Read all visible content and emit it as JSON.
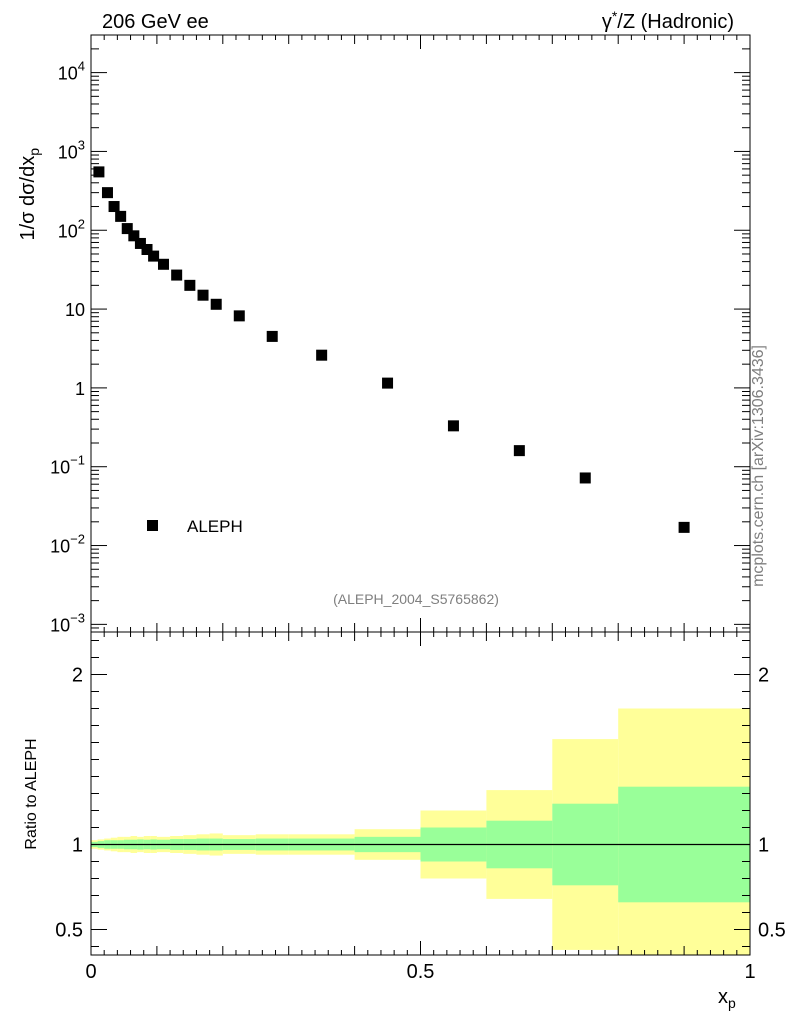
{
  "header": {
    "left_title": "206 GeV ee",
    "right_title_base": "γ",
    "right_title_sup": "*",
    "right_title_rest": "/Z (Hadronic)"
  },
  "watermark": "mcplots.cern.ch [arXiv:1306.3436]",
  "analysis_id": "(ALEPH_2004_S5765862)",
  "chart_data": [
    {
      "type": "scatter",
      "panel": "main",
      "ylabel": "1/σ dσ/dx_p",
      "ylabel_parts": {
        "main": "1/σ dσ/dx",
        "sub": "p"
      },
      "yscale": "log",
      "ylim": [
        0.0008,
        30000
      ],
      "xlim": [
        0,
        1
      ],
      "y_ticks": [
        {
          "value": 10000,
          "base": "10",
          "exp": "4"
        },
        {
          "value": 1000,
          "base": "10",
          "exp": "3"
        },
        {
          "value": 100,
          "base": "10",
          "exp": "2"
        },
        {
          "value": 10,
          "base": "10",
          "exp": ""
        },
        {
          "value": 1,
          "base": "1",
          "exp": ""
        },
        {
          "value": 0.1,
          "base": "10",
          "exp": "−1"
        },
        {
          "value": 0.01,
          "base": "10",
          "exp": "−2"
        },
        {
          "value": 0.001,
          "base": "10",
          "exp": "−3"
        }
      ],
      "legend": {
        "label": "ALEPH",
        "placement": "lower-left"
      },
      "series": [
        {
          "name": "ALEPH",
          "marker": "square",
          "x": [
            0.012,
            0.025,
            0.035,
            0.045,
            0.055,
            0.065,
            0.075,
            0.085,
            0.095,
            0.11,
            0.13,
            0.15,
            0.17,
            0.19,
            0.225,
            0.275,
            0.35,
            0.45,
            0.55,
            0.65,
            0.75,
            0.9
          ],
          "y": [
            550,
            300,
            200,
            150,
            105,
            85,
            68,
            57,
            47,
            37,
            27,
            20,
            15,
            11.5,
            8.2,
            4.5,
            2.6,
            1.15,
            0.33,
            0.16,
            0.072,
            0.017
          ]
        }
      ]
    },
    {
      "type": "area",
      "panel": "ratio",
      "ylabel": "Ratio to ALEPH",
      "ylim": [
        0.35,
        2.25
      ],
      "xlim": [
        0,
        1
      ],
      "xlabel_parts": {
        "main": "x",
        "sub": "p"
      },
      "x_ticks": [
        {
          "value": 0,
          "label": "0"
        },
        {
          "value": 0.5,
          "label": "0.5"
        },
        {
          "value": 1,
          "label": "1"
        }
      ],
      "y_ticks": [
        {
          "value": 0.5,
          "label": "0.5"
        },
        {
          "value": 1,
          "label": "1"
        },
        {
          "value": 2,
          "label": "2"
        }
      ],
      "reference_line": 1,
      "colors": {
        "inner_band": "#99ff99",
        "outer_band": "#ffff99"
      },
      "bins": [
        {
          "x0": 0.0,
          "x1": 0.01,
          "inner": [
            0.985,
            1.015
          ],
          "outer": [
            0.975,
            1.025
          ]
        },
        {
          "x0": 0.01,
          "x1": 0.02,
          "inner": [
            0.98,
            1.02
          ],
          "outer": [
            0.97,
            1.03
          ]
        },
        {
          "x0": 0.02,
          "x1": 0.03,
          "inner": [
            0.975,
            1.025
          ],
          "outer": [
            0.965,
            1.035
          ]
        },
        {
          "x0": 0.03,
          "x1": 0.04,
          "inner": [
            0.975,
            1.025
          ],
          "outer": [
            0.96,
            1.04
          ]
        },
        {
          "x0": 0.04,
          "x1": 0.05,
          "inner": [
            0.975,
            1.025
          ],
          "outer": [
            0.955,
            1.045
          ]
        },
        {
          "x0": 0.05,
          "x1": 0.06,
          "inner": [
            0.972,
            1.028
          ],
          "outer": [
            0.955,
            1.045
          ]
        },
        {
          "x0": 0.06,
          "x1": 0.07,
          "inner": [
            0.972,
            1.028
          ],
          "outer": [
            0.95,
            1.05
          ]
        },
        {
          "x0": 0.07,
          "x1": 0.08,
          "inner": [
            0.97,
            1.03
          ],
          "outer": [
            0.955,
            1.045
          ]
        },
        {
          "x0": 0.08,
          "x1": 0.09,
          "inner": [
            0.972,
            1.028
          ],
          "outer": [
            0.95,
            1.05
          ]
        },
        {
          "x0": 0.09,
          "x1": 0.1,
          "inner": [
            0.97,
            1.03
          ],
          "outer": [
            0.95,
            1.05
          ]
        },
        {
          "x0": 0.1,
          "x1": 0.12,
          "inner": [
            0.972,
            1.028
          ],
          "outer": [
            0.955,
            1.045
          ]
        },
        {
          "x0": 0.12,
          "x1": 0.14,
          "inner": [
            0.968,
            1.032
          ],
          "outer": [
            0.95,
            1.05
          ]
        },
        {
          "x0": 0.14,
          "x1": 0.16,
          "inner": [
            0.968,
            1.032
          ],
          "outer": [
            0.945,
            1.055
          ]
        },
        {
          "x0": 0.16,
          "x1": 0.18,
          "inner": [
            0.965,
            1.035
          ],
          "outer": [
            0.94,
            1.06
          ]
        },
        {
          "x0": 0.18,
          "x1": 0.2,
          "inner": [
            0.965,
            1.035
          ],
          "outer": [
            0.935,
            1.065
          ]
        },
        {
          "x0": 0.2,
          "x1": 0.25,
          "inner": [
            0.968,
            1.032
          ],
          "outer": [
            0.945,
            1.055
          ]
        },
        {
          "x0": 0.25,
          "x1": 0.3,
          "inner": [
            0.965,
            1.035
          ],
          "outer": [
            0.94,
            1.06
          ]
        },
        {
          "x0": 0.3,
          "x1": 0.4,
          "inner": [
            0.965,
            1.035
          ],
          "outer": [
            0.94,
            1.06
          ]
        },
        {
          "x0": 0.4,
          "x1": 0.5,
          "inner": [
            0.955,
            1.045
          ],
          "outer": [
            0.91,
            1.09
          ]
        },
        {
          "x0": 0.5,
          "x1": 0.6,
          "inner": [
            0.9,
            1.1
          ],
          "outer": [
            0.8,
            1.2
          ]
        },
        {
          "x0": 0.6,
          "x1": 0.7,
          "inner": [
            0.86,
            1.14
          ],
          "outer": [
            0.68,
            1.32
          ]
        },
        {
          "x0": 0.7,
          "x1": 0.8,
          "inner": [
            0.76,
            1.24
          ],
          "outer": [
            0.38,
            1.62
          ]
        },
        {
          "x0": 0.8,
          "x1": 1.0,
          "inner": [
            0.66,
            1.34
          ],
          "outer": [
            0.35,
            1.8
          ]
        }
      ]
    }
  ]
}
